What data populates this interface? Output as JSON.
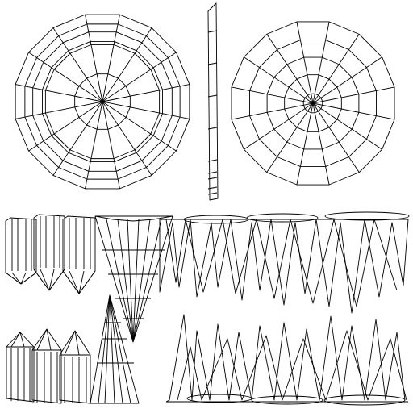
{
  "view": {
    "background": "#ffffff",
    "line_color": "#000000"
  },
  "meshes": {
    "disc_left": {
      "rings": 6,
      "segments": 16
    },
    "disc_right": {
      "rings": 5,
      "segments": 16
    },
    "cones_row": {
      "count": 3
    },
    "small_prisms": {
      "count": 3
    }
  }
}
